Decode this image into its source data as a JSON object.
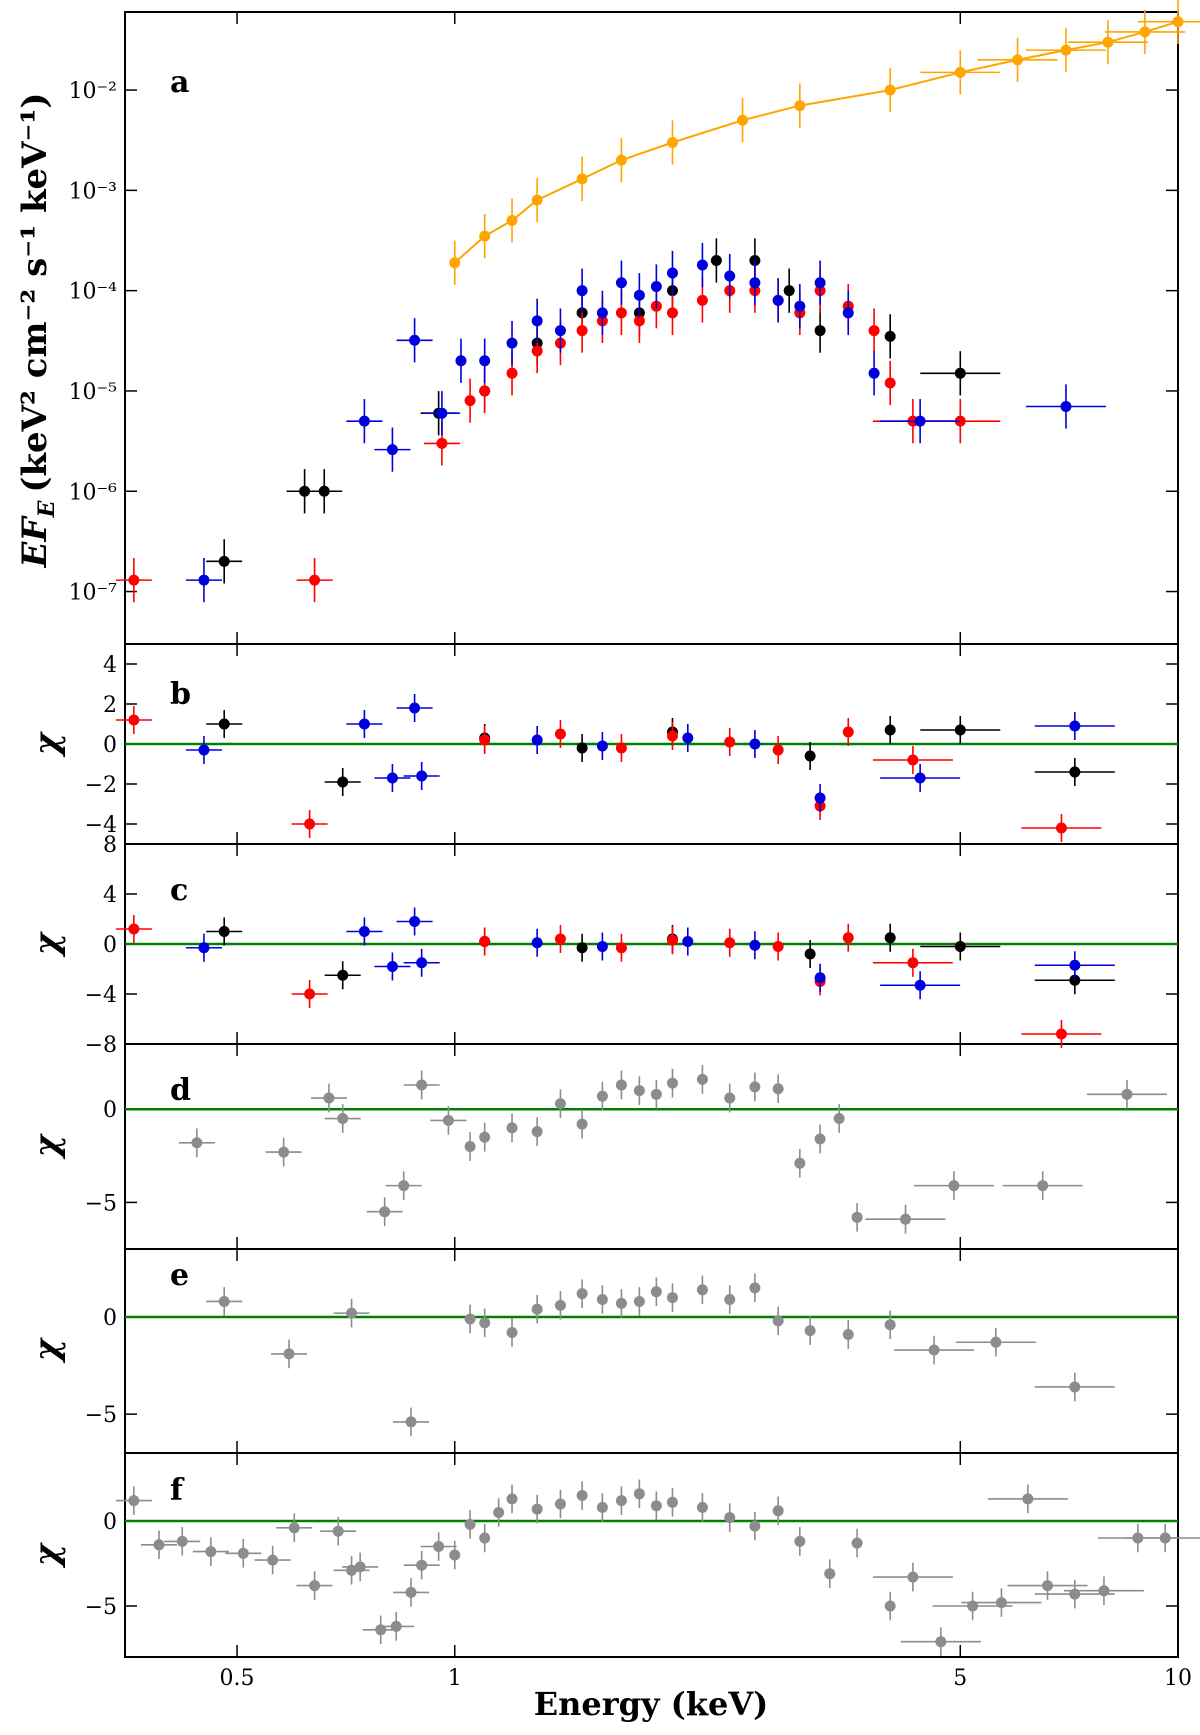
{
  "chart_data": {
    "type": "scatter",
    "x_scale": "log",
    "xlim": [
      0.35,
      10
    ],
    "xlabel": "Energy (keV)",
    "xticks": [
      0.5,
      1,
      5,
      10
    ],
    "xtick_labels": [
      "0.5",
      "1",
      "5",
      "10"
    ],
    "colors": {
      "black": "#000000",
      "red": "#ff0000",
      "blue": "#0000dd",
      "orange": "#ffa500",
      "gray": "#8c8c8c",
      "green": "#008000"
    },
    "panels": [
      {
        "id": "a",
        "label": "a",
        "y_scale": "log",
        "ylim": [
          3e-08,
          0.06
        ],
        "ylabel_main": "EF",
        "ylabel_sub": "E",
        "ylabel_units": "(keV² cm⁻² s⁻¹ keV⁻¹)",
        "yticks": [
          1e-07,
          1e-06,
          1e-05,
          0.0001,
          0.001,
          0.01
        ],
        "ytick_labels": [
          "10⁻⁷",
          "10⁻⁶",
          "10⁻⁵",
          "10⁻⁴",
          "10⁻³",
          "10⁻²"
        ],
        "series": [
          {
            "name": "black",
            "color": "black",
            "x": [
              0.48,
              0.62,
              0.66,
              0.95,
              1.1,
              1.3,
              1.5,
              1.8,
              2.0,
              2.3,
              2.6,
              2.9,
              3.2,
              4.0,
              5.0
            ],
            "y": [
              2e-07,
              1e-06,
              1e-06,
              6e-06,
              1e-05,
              3e-05,
              6e-05,
              6e-05,
              0.0001,
              0.0002,
              0.0002,
              0.0001,
              4e-05,
              3.5e-05,
              1.5e-05
            ]
          },
          {
            "name": "red",
            "color": "red",
            "x": [
              0.36,
              0.64,
              0.96,
              1.05,
              1.1,
              1.2,
              1.3,
              1.4,
              1.5,
              1.6,
              1.7,
              1.8,
              1.9,
              2.0,
              2.2,
              2.4,
              2.6,
              2.8,
              3.0,
              3.2,
              3.5,
              3.8,
              4.0,
              4.3,
              5.0
            ],
            "y": [
              1.3e-07,
              1.3e-07,
              3e-06,
              8e-06,
              1e-05,
              1.5e-05,
              2.5e-05,
              3e-05,
              4e-05,
              5e-05,
              6e-05,
              5e-05,
              7e-05,
              6e-05,
              8e-05,
              0.0001,
              0.0001,
              8e-05,
              6e-05,
              0.0001,
              7e-05,
              4e-05,
              1.2e-05,
              5e-06,
              5e-06
            ]
          },
          {
            "name": "blue",
            "color": "blue",
            "x": [
              0.45,
              0.75,
              0.82,
              0.88,
              0.96,
              1.02,
              1.1,
              1.2,
              1.3,
              1.4,
              1.5,
              1.6,
              1.7,
              1.8,
              1.9,
              2.0,
              2.2,
              2.4,
              2.6,
              2.8,
              3.0,
              3.2,
              3.5,
              3.8,
              4.4,
              7.0
            ],
            "y": [
              1.3e-07,
              5e-06,
              2.6e-06,
              3.2e-05,
              6e-06,
              2e-05,
              2e-05,
              3e-05,
              5e-05,
              4e-05,
              0.0001,
              6e-05,
              0.00012,
              9e-05,
              0.00011,
              0.00015,
              0.00018,
              0.00014,
              0.00012,
              8e-05,
              7e-05,
              0.00012,
              6e-05,
              1.5e-05,
              5e-06,
              7e-06
            ]
          },
          {
            "name": "orange",
            "color": "orange",
            "x": [
              1.0,
              1.1,
              1.2,
              1.3,
              1.5,
              1.7,
              2.0,
              2.5,
              3.0,
              4.0,
              5.0,
              6.0,
              7.0,
              8.0,
              9.0,
              10.0
            ],
            "y": [
              0.00019,
              0.00035,
              0.0005,
              0.0008,
              0.0013,
              0.002,
              0.003,
              0.005,
              0.007,
              0.01,
              0.015,
              0.02,
              0.025,
              0.03,
              0.038,
              0.048
            ]
          }
        ]
      },
      {
        "id": "b",
        "label": "b",
        "y_scale": "linear",
        "ylim": [
          -5,
          5
        ],
        "yticks": [
          -4,
          -2,
          0,
          2,
          4
        ],
        "ytick_labels": [
          "−4",
          "−2",
          "0",
          "2",
          "4"
        ],
        "ylabel": "χ",
        "series": [
          {
            "name": "black",
            "color": "black",
            "x": [
              0.48,
              0.7,
              1.1,
              1.5,
              2.0,
              3.1,
              4.0,
              5.0,
              7.2
            ],
            "y": [
              1.0,
              -1.9,
              0.3,
              -0.2,
              0.6,
              -0.6,
              0.7,
              0.7,
              -1.4
            ]
          },
          {
            "name": "red",
            "color": "red",
            "x": [
              0.36,
              0.63,
              1.1,
              1.4,
              1.7,
              2.0,
              2.4,
              2.8,
              3.2,
              3.5,
              4.3,
              6.9
            ],
            "y": [
              1.2,
              -4.0,
              0.2,
              0.5,
              -0.2,
              0.4,
              0.1,
              -0.3,
              -3.1,
              0.6,
              -0.8,
              -4.2
            ]
          },
          {
            "name": "blue",
            "color": "blue",
            "x": [
              0.45,
              0.75,
              0.82,
              0.88,
              0.9,
              1.3,
              1.6,
              2.1,
              2.6,
              3.2,
              4.4,
              7.2
            ],
            "y": [
              -0.3,
              1.0,
              -1.7,
              1.8,
              -1.6,
              0.2,
              -0.1,
              0.3,
              0.0,
              -2.7,
              -1.7,
              0.9
            ]
          }
        ]
      },
      {
        "id": "c",
        "label": "c",
        "y_scale": "linear",
        "ylim": [
          -8,
          8
        ],
        "yticks": [
          -8,
          -4,
          0,
          4,
          8
        ],
        "ytick_labels": [
          "−8",
          "−4",
          "0",
          "4",
          "8"
        ],
        "ylabel": "χ",
        "series": [
          {
            "name": "black",
            "color": "black",
            "x": [
              0.48,
              0.7,
              1.1,
              1.5,
              2.0,
              3.1,
              4.0,
              5.0,
              7.2
            ],
            "y": [
              1.0,
              -2.5,
              0.2,
              -0.3,
              0.4,
              -0.8,
              0.5,
              -0.2,
              -2.9
            ]
          },
          {
            "name": "red",
            "color": "red",
            "x": [
              0.36,
              0.63,
              1.1,
              1.4,
              1.7,
              2.0,
              2.4,
              2.8,
              3.2,
              3.5,
              4.3,
              6.9
            ],
            "y": [
              1.2,
              -4.0,
              0.2,
              0.4,
              -0.3,
              0.3,
              0.1,
              -0.2,
              -3.0,
              0.5,
              -1.5,
              -7.2
            ]
          },
          {
            "name": "blue",
            "color": "blue",
            "x": [
              0.45,
              0.75,
              0.82,
              0.88,
              0.9,
              1.3,
              1.6,
              2.1,
              2.6,
              3.2,
              4.4,
              7.2
            ],
            "y": [
              -0.3,
              1.0,
              -1.8,
              1.8,
              -1.5,
              0.1,
              -0.2,
              0.2,
              -0.1,
              -2.7,
              -3.3,
              -1.7
            ]
          }
        ]
      },
      {
        "id": "d",
        "label": "d",
        "y_scale": "linear",
        "ylim": [
          -7.5,
          3.5
        ],
        "yticks": [
          -5,
          0
        ],
        "ytick_labels": [
          "−5",
          "0"
        ],
        "ylabel": "χ",
        "series": [
          {
            "name": "gray",
            "color": "gray",
            "x": [
              0.44,
              0.58,
              0.67,
              0.7,
              0.8,
              0.85,
              0.9,
              0.98,
              1.05,
              1.1,
              1.2,
              1.3,
              1.4,
              1.5,
              1.6,
              1.7,
              1.8,
              1.9,
              2.0,
              2.2,
              2.4,
              2.6,
              2.8,
              3.0,
              3.2,
              3.4,
              3.6,
              4.2,
              4.9,
              6.5,
              8.5
            ],
            "y": [
              -1.8,
              -2.3,
              0.6,
              -0.5,
              -5.5,
              -4.1,
              1.3,
              -0.6,
              -2.0,
              -1.5,
              -1.0,
              -1.2,
              0.3,
              -0.8,
              0.7,
              1.3,
              1.0,
              0.8,
              1.4,
              1.6,
              0.6,
              1.2,
              1.1,
              -2.9,
              -1.6,
              -0.5,
              -5.8,
              -5.9,
              -4.1,
              -4.1,
              0.8
            ]
          }
        ]
      },
      {
        "id": "e",
        "label": "e",
        "y_scale": "linear",
        "ylim": [
          -7,
          3.5
        ],
        "yticks": [
          -5,
          0
        ],
        "ytick_labels": [
          "−5",
          "0"
        ],
        "ylabel": "χ",
        "series": [
          {
            "name": "gray",
            "color": "gray",
            "x": [
              0.48,
              0.59,
              0.72,
              0.87,
              1.05,
              1.1,
              1.2,
              1.3,
              1.4,
              1.5,
              1.6,
              1.7,
              1.8,
              1.9,
              2.0,
              2.2,
              2.4,
              2.6,
              2.8,
              3.1,
              3.5,
              4.0,
              4.6,
              5.6,
              7.2
            ],
            "y": [
              0.8,
              -1.9,
              0.2,
              -5.4,
              -0.1,
              -0.3,
              -0.8,
              0.4,
              0.6,
              1.2,
              0.9,
              0.7,
              0.8,
              1.3,
              1.0,
              1.4,
              0.9,
              1.5,
              -0.2,
              -0.7,
              -0.9,
              -0.4,
              -1.7,
              -1.3,
              -3.6
            ]
          }
        ]
      },
      {
        "id": "f",
        "label": "f",
        "y_scale": "linear",
        "ylim": [
          -8,
          4
        ],
        "yticks": [
          -5,
          0
        ],
        "ytick_labels": [
          "−5",
          "0"
        ],
        "ylabel": "χ",
        "series": [
          {
            "name": "gray",
            "color": "gray",
            "x": [
              0.36,
              0.39,
              0.42,
              0.46,
              0.51,
              0.56,
              0.6,
              0.64,
              0.69,
              0.72,
              0.74,
              0.79,
              0.83,
              0.87,
              0.9,
              0.95,
              1.0,
              1.05,
              1.1,
              1.15,
              1.2,
              1.3,
              1.4,
              1.5,
              1.6,
              1.7,
              1.8,
              1.9,
              2.0,
              2.2,
              2.4,
              2.6,
              2.8,
              3.0,
              3.3,
              3.6,
              4.0,
              4.3,
              4.7,
              5.2,
              5.7,
              6.2,
              6.6,
              7.2,
              7.9,
              8.8,
              9.6
            ],
            "y": [
              1.2,
              -1.4,
              -1.2,
              -1.8,
              -1.9,
              -2.3,
              -0.4,
              -3.8,
              -0.6,
              -2.9,
              -2.7,
              -6.4,
              -6.2,
              -4.2,
              -2.6,
              -1.5,
              -2.0,
              -0.2,
              -1.0,
              0.5,
              1.3,
              0.7,
              1.0,
              1.5,
              0.8,
              1.2,
              1.6,
              0.9,
              1.1,
              0.8,
              0.2,
              -0.3,
              0.6,
              -1.2,
              -3.1,
              -1.3,
              -5.0,
              -3.3,
              -7.1,
              -5.0,
              -4.8,
              1.3,
              -3.8,
              -4.3,
              -4.1,
              -1.0,
              -1.0
            ]
          }
        ]
      }
    ]
  }
}
